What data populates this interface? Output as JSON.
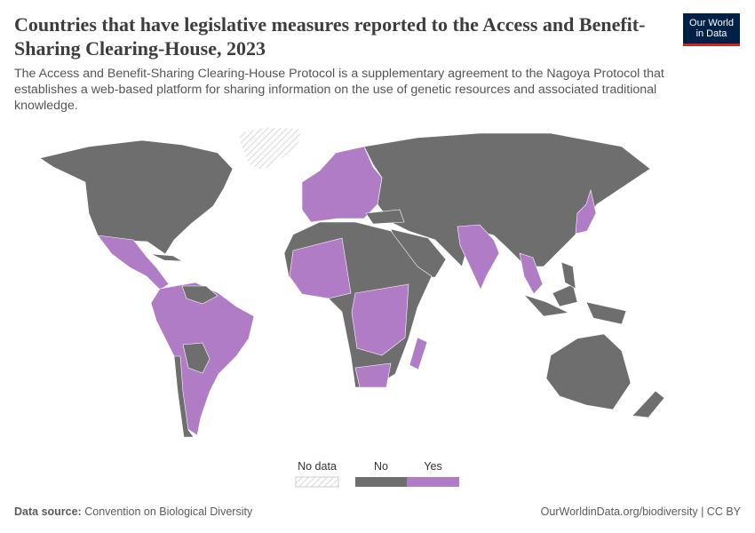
{
  "header": {
    "title": "Countries that have legislative measures reported to the Access and Benefit-Sharing Clearing-House, 2023",
    "subtitle": "The Access and Benefit-Sharing Clearing-House Protocol is a supplementary agreement to the Nagoya Protocol that establishes a web-based platform for sharing information on the use of genetic resources and associated traditional knowledge.",
    "logo": [
      "Our World",
      "in Data"
    ]
  },
  "legend": {
    "items": [
      {
        "label": "No data",
        "color": "#e0e0e0"
      },
      {
        "label": "No",
        "color": "#6e6e6e"
      },
      {
        "label": "Yes",
        "color": "#b07cc6"
      }
    ]
  },
  "footer": {
    "source_label": "Data source:",
    "source": "Convention on Biological Diversity",
    "url": "OurWorldinData.org/biodiversity | CC BY"
  }
}
